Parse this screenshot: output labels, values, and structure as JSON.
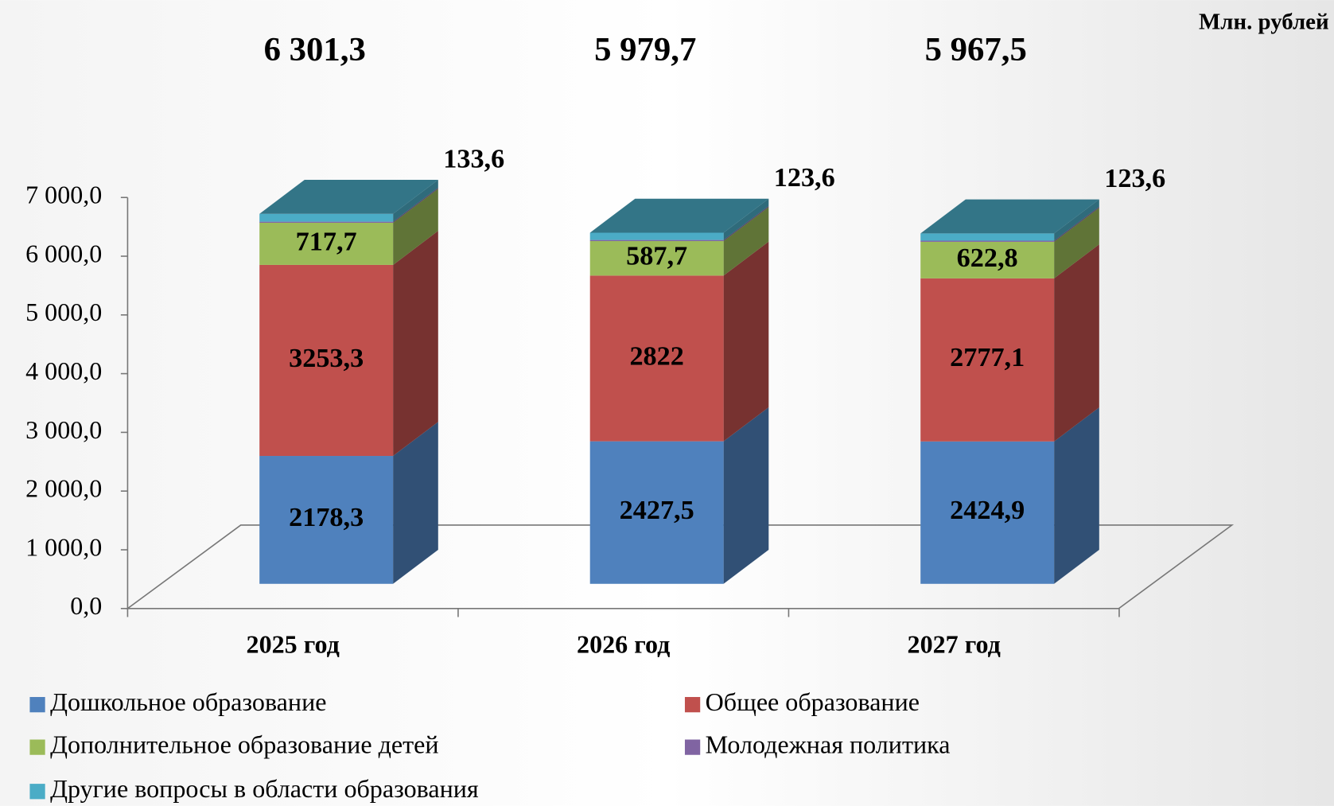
{
  "chart_data": {
    "type": "bar3d_stacked",
    "unit": "Млн. рублей",
    "categories": [
      "2025 год",
      "2026 год",
      "2027 год"
    ],
    "totals": {
      "values": [
        6301.3,
        5979.7,
        5967.5
      ],
      "value_labels": [
        "6 301,3",
        "5 979,7",
        "5 967,5"
      ]
    },
    "series": [
      {
        "name": "Дошкольное образование",
        "color": "#4f81bd",
        "values": [
          2178.3,
          2427.5,
          2424.9
        ],
        "value_labels": [
          "2178,3",
          "2427,5",
          "2424,9"
        ]
      },
      {
        "name": "Общее образование",
        "color": "#c0504d",
        "values": [
          3253.3,
          2822,
          2777.1
        ],
        "value_labels": [
          "3253,3",
          "2822",
          "2777,1"
        ]
      },
      {
        "name": "Дополнительное образование детей",
        "color": "#9bbb59",
        "values": [
          717.7,
          587.7,
          622.8
        ],
        "value_labels": [
          "717,7",
          "587,7",
          "622,8"
        ]
      },
      {
        "name": "Молодежная политика",
        "color": "#8064a2",
        "values": [
          18.4,
          18.9,
          19.1
        ]
      },
      {
        "name": "Другие вопросы в области образования",
        "color": "#4bacc6",
        "values": [
          133.6,
          123.6,
          123.6
        ],
        "value_labels": [
          "133,6",
          "123,6",
          "123,6"
        ]
      }
    ],
    "ylim": [
      0,
      7000
    ],
    "yticks": [
      {
        "value": 0,
        "label": "0,0"
      },
      {
        "value": 1000,
        "label": "1 000,0"
      },
      {
        "value": 2000,
        "label": "2 000,0"
      },
      {
        "value": 3000,
        "label": "3 000,0"
      },
      {
        "value": 4000,
        "label": "4 000,0"
      },
      {
        "value": 5000,
        "label": "5 000,0"
      },
      {
        "value": 6000,
        "label": "6 000,0"
      },
      {
        "value": 7000,
        "label": "7 000,0"
      }
    ],
    "legend": "bottom"
  }
}
